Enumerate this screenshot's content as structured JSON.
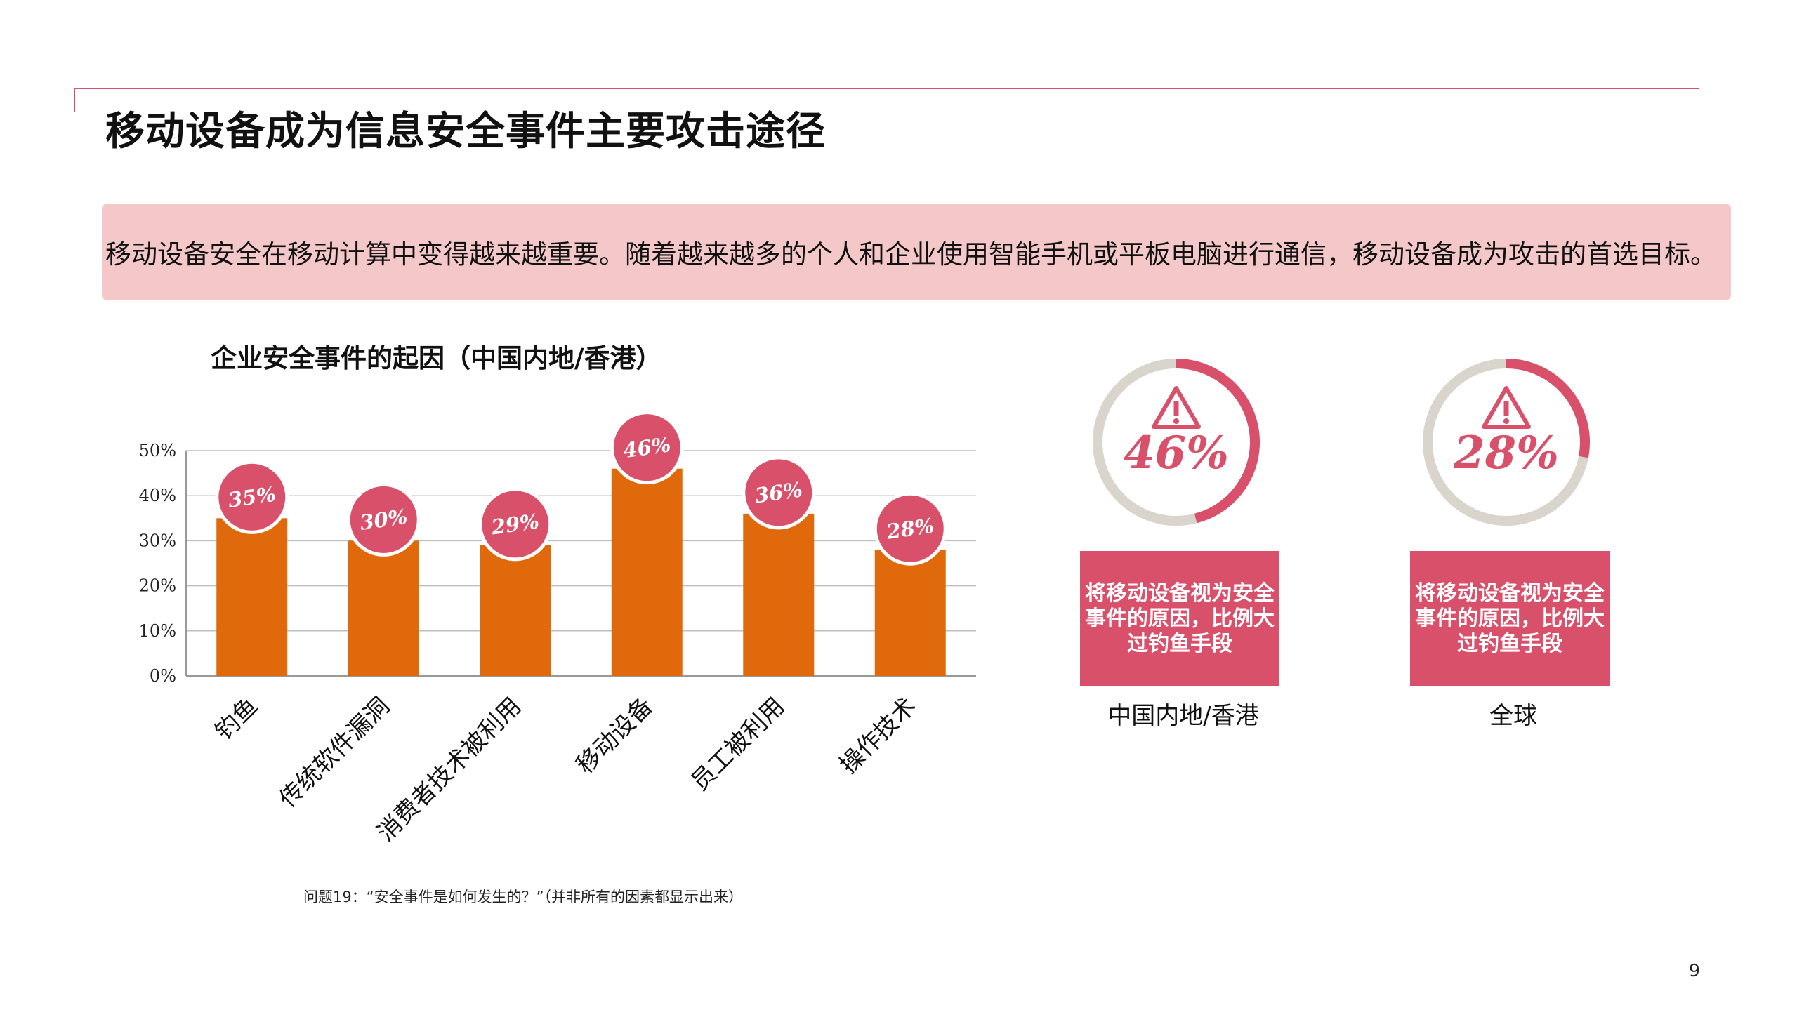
{
  "header": {
    "title": "移动设备成为信息安全事件主要攻击途径"
  },
  "banner": {
    "text": "移动设备安全在移动计算中变得越来越重要。随着越来越多的个人和企业使用智能手机或平板电脑进行通信，移动设备成为攻击的首选目标。"
  },
  "chart_data": {
    "type": "bar",
    "title": "企业安全事件的起因（中国内地/香港）",
    "categories": [
      "钓鱼",
      "传统软件漏洞",
      "消费者技术被利用",
      "移动设备",
      "员工被利用",
      "操作技术"
    ],
    "values": [
      35,
      30,
      29,
      46,
      36,
      28
    ],
    "data_labels": [
      "35%",
      "30%",
      "29%",
      "46%",
      "36%",
      "28%"
    ],
    "y_ticks": [
      "0%",
      "10%",
      "20%",
      "30%",
      "40%",
      "50%"
    ],
    "ylim": [
      0,
      50
    ],
    "grid": true,
    "xlabel": "",
    "ylabel": "",
    "bar_color": "#e06a0b",
    "label_bubble_color": "#d9506b"
  },
  "stats": [
    {
      "percent": 46,
      "label": "46%",
      "box_text": "将移动设备视为安全事件的原因，比例大过钓鱼手段",
      "region": "中国内地/香港"
    },
    {
      "percent": 28,
      "label": "28%",
      "box_text": "将移动设备视为安全事件的原因，比例大过钓鱼手段",
      "region": "全球"
    }
  ],
  "colors": {
    "accent": "#d9506b",
    "ring_track": "#d9d4cc",
    "banner_bg": "#f4c7c9"
  },
  "icons": [
    "warning-icon"
  ],
  "footnote": "问题19：“安全事件是如何发生的？”（并非所有的因素都显示出来）",
  "page_number": "9"
}
